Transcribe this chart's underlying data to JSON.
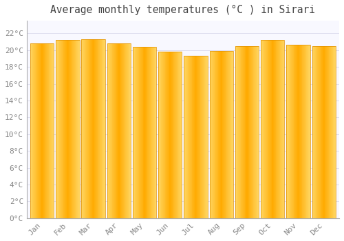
{
  "title": "Average monthly temperatures (°C ) in Sirari",
  "months": [
    "Jan",
    "Feb",
    "Mar",
    "Apr",
    "May",
    "Jun",
    "Jul",
    "Aug",
    "Sep",
    "Oct",
    "Nov",
    "Dec"
  ],
  "values": [
    20.8,
    21.2,
    21.3,
    20.8,
    20.4,
    19.8,
    19.3,
    19.9,
    20.5,
    21.2,
    20.6,
    20.5
  ],
  "bar_color_center": "#FFAA00",
  "bar_color_edge": "#FFD060",
  "background_color": "#FFFFFF",
  "plot_bg_color": "#F8F8FF",
  "grid_color": "#DDDDEE",
  "ytick_labels": [
    "0°C",
    "2°C",
    "4°C",
    "6°C",
    "8°C",
    "10°C",
    "12°C",
    "14°C",
    "16°C",
    "18°C",
    "20°C",
    "22°C"
  ],
  "ytick_values": [
    0,
    2,
    4,
    6,
    8,
    10,
    12,
    14,
    16,
    18,
    20,
    22
  ],
  "ylim": [
    0,
    23.5
  ],
  "title_fontsize": 10.5,
  "tick_fontsize": 8,
  "title_color": "#444444",
  "tick_color": "#888888",
  "bar_width": 0.92
}
